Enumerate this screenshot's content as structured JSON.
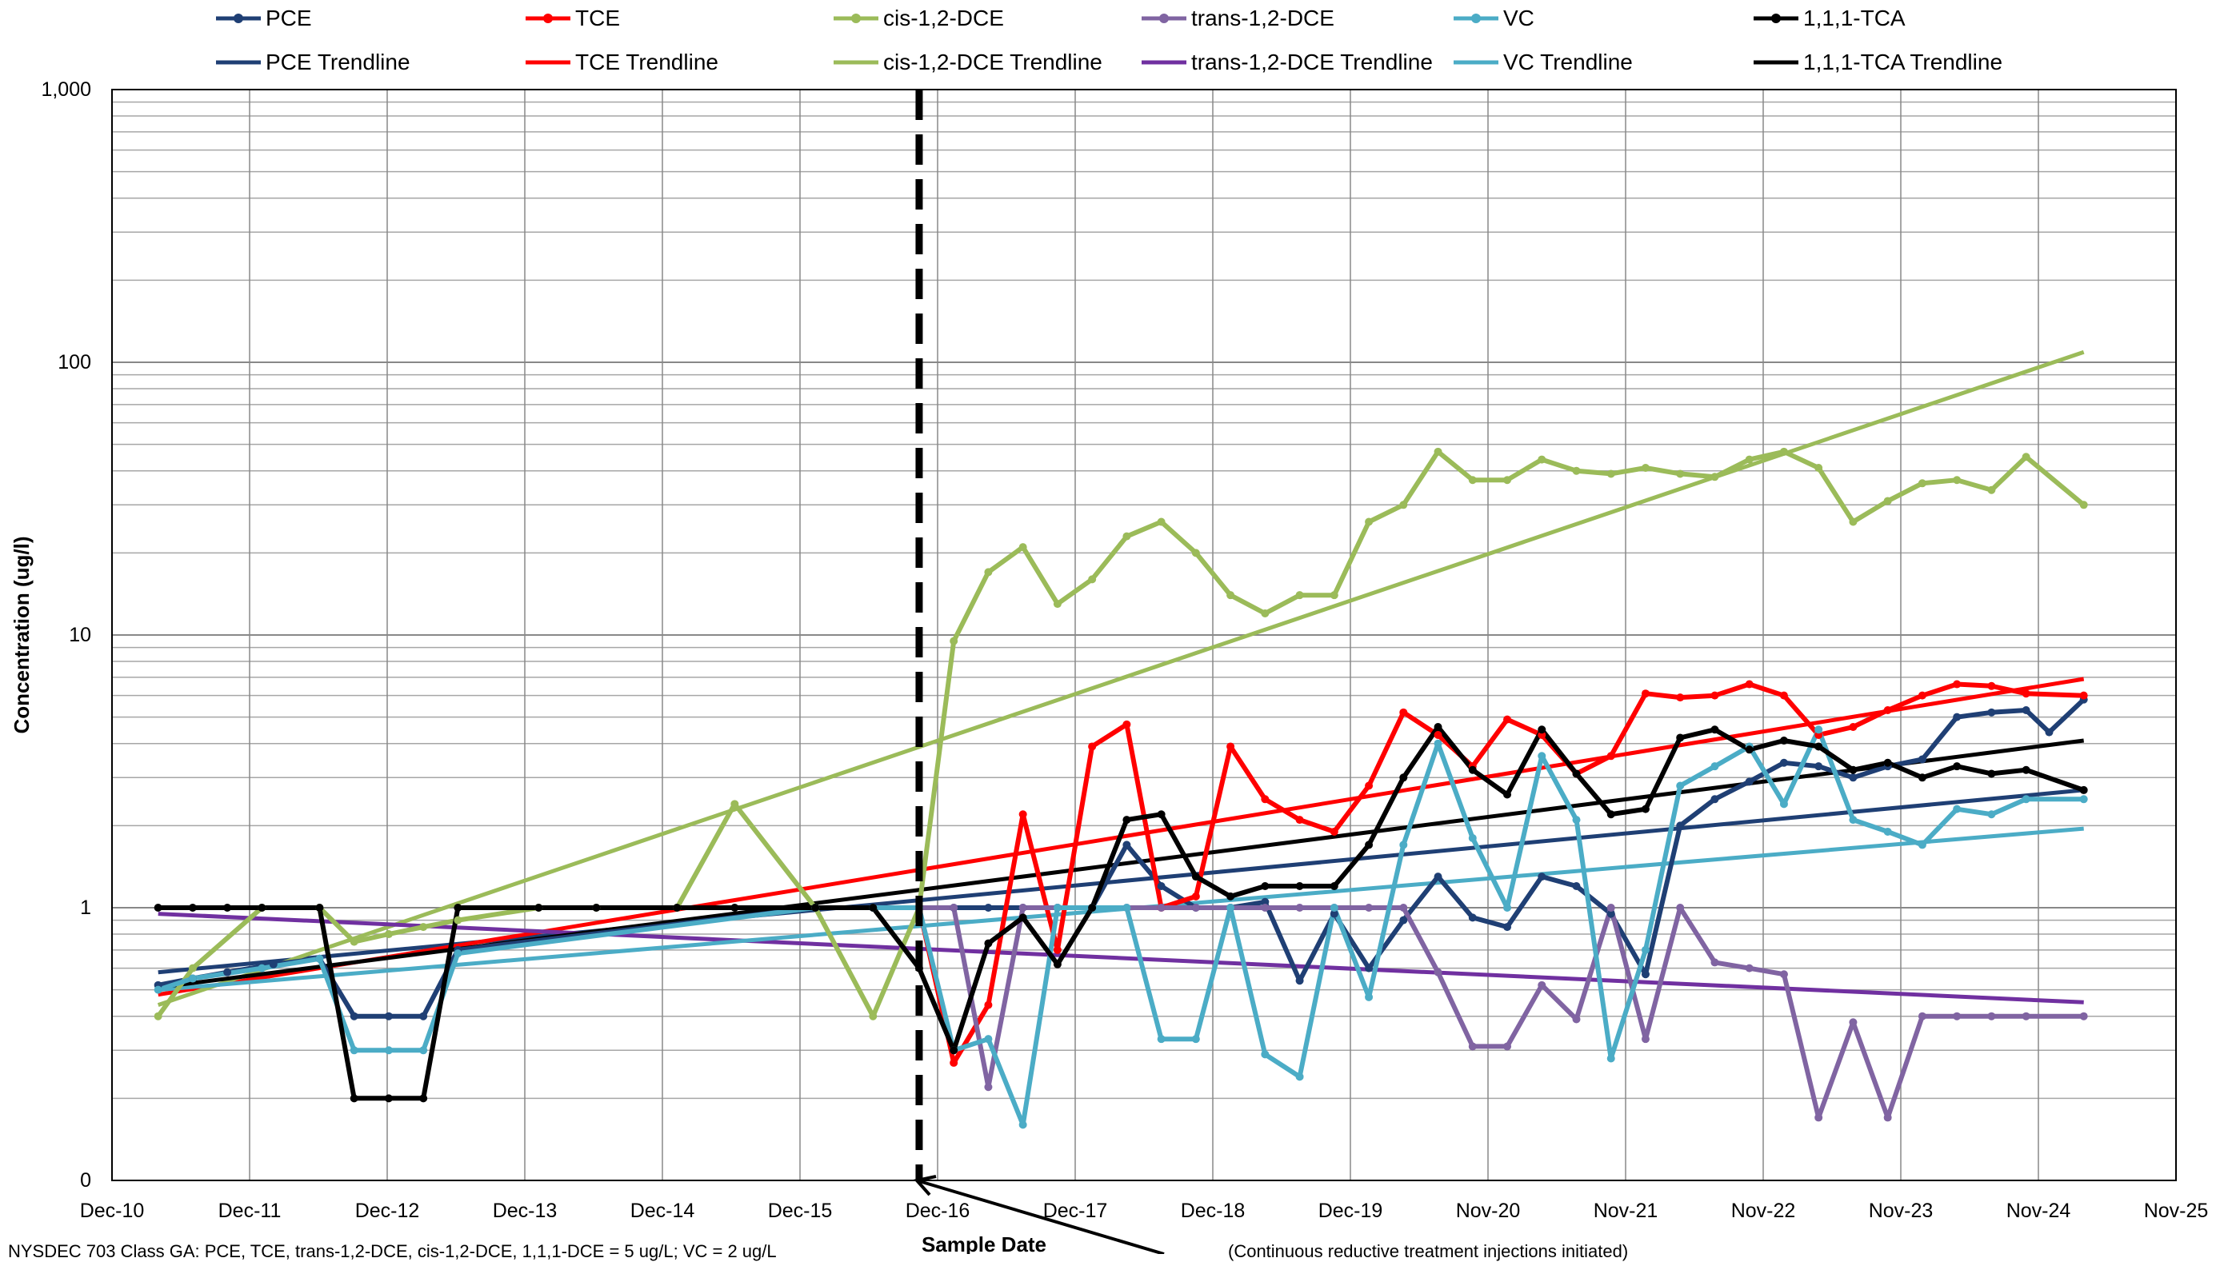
{
  "chart_data": {
    "type": "line",
    "yscale": "log",
    "ylim": [
      0.1,
      1000
    ],
    "ylabel": "Concentration (ug/l)",
    "xlabel": "Sample Date",
    "y_ticks": [
      {
        "value": 0.1,
        "label": "0"
      },
      {
        "value": 1,
        "label": "1"
      },
      {
        "value": 10,
        "label": "10"
      },
      {
        "value": 100,
        "label": "100"
      },
      {
        "value": 1000,
        "label": "1,000"
      }
    ],
    "x_ticks": [
      "Dec-10",
      "Dec-11",
      "Dec-12",
      "Dec-13",
      "Dec-14",
      "Dec-15",
      "Dec-16",
      "Dec-17",
      "Dec-18",
      "Dec-19",
      "Nov-20",
      "Nov-21",
      "Nov-22",
      "Nov-23",
      "Nov-24",
      "Nov-25"
    ],
    "x_range": [
      "2010-12",
      "2025-11"
    ],
    "grid": true,
    "legend_position": "top",
    "vertical_marker": {
      "x": "2016-10",
      "style": "dashed"
    },
    "series": [
      {
        "name": "PCE",
        "color": "#1F3F74",
        "marker": true,
        "points": [
          [
            "2011-04",
            0.52
          ],
          [
            "2011-07",
            0.55
          ],
          [
            "2011-10",
            0.58
          ],
          [
            "2012-02",
            0.62
          ],
          [
            "2012-06",
            0.65
          ],
          [
            "2012-09",
            0.4
          ],
          [
            "2012-12",
            0.4
          ],
          [
            "2013-03",
            0.4
          ],
          [
            "2013-06",
            0.7
          ],
          [
            "2016-01",
            1.0
          ],
          [
            "2016-06",
            1.0
          ],
          [
            "2016-10",
            1.0
          ],
          [
            "2017-01",
            1.0
          ],
          [
            "2017-04",
            1.0
          ],
          [
            "2017-07",
            1.0
          ],
          [
            "2017-10",
            1.0
          ],
          [
            "2018-01",
            1.0
          ],
          [
            "2018-04",
            1.7
          ],
          [
            "2018-07",
            1.2
          ],
          [
            "2018-10",
            1.0
          ],
          [
            "2019-01",
            1.0
          ],
          [
            "2019-04",
            1.05
          ],
          [
            "2019-07",
            0.54
          ],
          [
            "2019-10",
            0.95
          ],
          [
            "2020-01",
            0.6
          ],
          [
            "2020-04",
            0.9
          ],
          [
            "2020-07",
            1.3
          ],
          [
            "2020-10",
            0.92
          ],
          [
            "2021-01",
            0.85
          ],
          [
            "2021-04",
            1.3
          ],
          [
            "2021-07",
            1.2
          ],
          [
            "2021-10",
            0.95
          ],
          [
            "2022-01",
            0.57
          ],
          [
            "2022-04",
            2.0
          ],
          [
            "2022-07",
            2.5
          ],
          [
            "2022-10",
            2.9
          ],
          [
            "2023-01",
            3.4
          ],
          [
            "2023-04",
            3.3
          ],
          [
            "2023-07",
            3.0
          ],
          [
            "2023-10",
            3.3
          ],
          [
            "2024-01",
            3.5
          ],
          [
            "2024-04",
            5.0
          ],
          [
            "2024-07",
            5.2
          ],
          [
            "2024-10",
            5.3
          ],
          [
            "2024-12",
            4.4
          ],
          [
            "2025-03",
            5.8
          ]
        ]
      },
      {
        "name": "TCE",
        "color": "#FF0000",
        "marker": true,
        "points": [
          [
            "2016-10",
            1.0
          ],
          [
            "2017-01",
            0.27
          ],
          [
            "2017-04",
            0.44
          ],
          [
            "2017-07",
            2.2
          ],
          [
            "2017-10",
            0.7
          ],
          [
            "2018-01",
            3.9
          ],
          [
            "2018-04",
            4.7
          ],
          [
            "2018-07",
            1.0
          ],
          [
            "2018-10",
            1.1
          ],
          [
            "2019-01",
            3.9
          ],
          [
            "2019-04",
            2.5
          ],
          [
            "2019-07",
            2.1
          ],
          [
            "2019-10",
            1.9
          ],
          [
            "2020-01",
            2.8
          ],
          [
            "2020-04",
            5.2
          ],
          [
            "2020-07",
            4.3
          ],
          [
            "2020-10",
            3.3
          ],
          [
            "2021-01",
            4.9
          ],
          [
            "2021-04",
            4.3
          ],
          [
            "2021-07",
            3.1
          ],
          [
            "2021-10",
            3.6
          ],
          [
            "2022-01",
            6.1
          ],
          [
            "2022-04",
            5.9
          ],
          [
            "2022-07",
            6.0
          ],
          [
            "2022-10",
            6.6
          ],
          [
            "2023-01",
            6.0
          ],
          [
            "2023-04",
            4.3
          ],
          [
            "2023-07",
            4.6
          ],
          [
            "2023-10",
            5.3
          ],
          [
            "2024-01",
            6.0
          ],
          [
            "2024-04",
            6.6
          ],
          [
            "2024-07",
            6.5
          ],
          [
            "2024-10",
            6.1
          ],
          [
            "2025-03",
            6.0
          ]
        ]
      },
      {
        "name": "cis-1,2-DCE",
        "color": "#9BBB59",
        "marker": true,
        "points": [
          [
            "2011-04",
            0.4
          ],
          [
            "2011-07",
            0.6
          ],
          [
            "2012-01",
            1.0
          ],
          [
            "2012-06",
            1.0
          ],
          [
            "2012-09",
            0.75
          ],
          [
            "2012-12",
            0.8
          ],
          [
            "2013-03",
            0.85
          ],
          [
            "2013-06",
            0.9
          ],
          [
            "2014-01",
            1.0
          ],
          [
            "2014-06",
            1.0
          ],
          [
            "2015-01",
            1.0
          ],
          [
            "2015-06",
            2.4
          ],
          [
            "2016-01",
            1.0
          ],
          [
            "2016-06",
            0.4
          ],
          [
            "2016-10",
            1.0
          ],
          [
            "2017-01",
            9.5
          ],
          [
            "2017-04",
            17
          ],
          [
            "2017-07",
            21
          ],
          [
            "2017-10",
            13
          ],
          [
            "2018-01",
            16
          ],
          [
            "2018-04",
            23
          ],
          [
            "2018-07",
            26
          ],
          [
            "2018-10",
            20
          ],
          [
            "2019-01",
            14
          ],
          [
            "2019-04",
            12
          ],
          [
            "2019-07",
            14
          ],
          [
            "2019-10",
            14
          ],
          [
            "2020-01",
            26
          ],
          [
            "2020-04",
            30
          ],
          [
            "2020-07",
            47
          ],
          [
            "2020-10",
            37
          ],
          [
            "2021-01",
            37
          ],
          [
            "2021-04",
            44
          ],
          [
            "2021-07",
            40
          ],
          [
            "2021-10",
            39
          ],
          [
            "2022-01",
            41
          ],
          [
            "2022-04",
            39
          ],
          [
            "2022-07",
            38
          ],
          [
            "2022-10",
            44
          ],
          [
            "2023-01",
            47
          ],
          [
            "2023-04",
            41
          ],
          [
            "2023-07",
            26
          ],
          [
            "2023-10",
            31
          ],
          [
            "2024-01",
            36
          ],
          [
            "2024-04",
            37
          ],
          [
            "2024-07",
            34
          ],
          [
            "2024-10",
            45
          ],
          [
            "2025-03",
            30
          ]
        ]
      },
      {
        "name": "trans-1,2-DCE",
        "color": "#8064A2",
        "marker": true,
        "points": [
          [
            "2016-10",
            1.0
          ],
          [
            "2017-01",
            1.0
          ],
          [
            "2017-04",
            0.22
          ],
          [
            "2017-07",
            1.0
          ],
          [
            "2017-10",
            1.0
          ],
          [
            "2018-01",
            1.0
          ],
          [
            "2018-04",
            1.0
          ],
          [
            "2018-07",
            1.0
          ],
          [
            "2018-10",
            1.0
          ],
          [
            "2019-01",
            1.0
          ],
          [
            "2019-04",
            1.0
          ],
          [
            "2019-07",
            1.0
          ],
          [
            "2019-10",
            1.0
          ],
          [
            "2020-01",
            1.0
          ],
          [
            "2020-04",
            1.0
          ],
          [
            "2020-07",
            0.58
          ],
          [
            "2020-10",
            0.31
          ],
          [
            "2021-01",
            0.31
          ],
          [
            "2021-04",
            0.52
          ],
          [
            "2021-07",
            0.39
          ],
          [
            "2021-10",
            1.0
          ],
          [
            "2022-01",
            0.33
          ],
          [
            "2022-04",
            1.0
          ],
          [
            "2022-07",
            0.63
          ],
          [
            "2022-10",
            0.6
          ],
          [
            "2023-01",
            0.57
          ],
          [
            "2023-04",
            0.17
          ],
          [
            "2023-07",
            0.38
          ],
          [
            "2023-10",
            0.17
          ],
          [
            "2024-01",
            0.4
          ],
          [
            "2024-04",
            0.4
          ],
          [
            "2024-07",
            0.4
          ],
          [
            "2024-10",
            0.4
          ],
          [
            "2025-03",
            0.4
          ]
        ]
      },
      {
        "name": "VC",
        "color": "#4BACC6",
        "marker": true,
        "points": [
          [
            "2011-04",
            0.5
          ],
          [
            "2011-07",
            0.55
          ],
          [
            "2012-01",
            0.6
          ],
          [
            "2012-06",
            0.65
          ],
          [
            "2012-09",
            0.3
          ],
          [
            "2012-12",
            0.3
          ],
          [
            "2013-03",
            0.3
          ],
          [
            "2013-06",
            0.68
          ],
          [
            "2016-01",
            1.0
          ],
          [
            "2016-06",
            1.0
          ],
          [
            "2016-10",
            1.0
          ],
          [
            "2017-01",
            0.3
          ],
          [
            "2017-04",
            0.33
          ],
          [
            "2017-07",
            0.16
          ],
          [
            "2017-10",
            1.0
          ],
          [
            "2018-01",
            1.0
          ],
          [
            "2018-04",
            1.0
          ],
          [
            "2018-07",
            0.33
          ],
          [
            "2018-10",
            0.33
          ],
          [
            "2019-01",
            1.0
          ],
          [
            "2019-04",
            0.29
          ],
          [
            "2019-07",
            0.24
          ],
          [
            "2019-10",
            1.0
          ],
          [
            "2020-01",
            0.47
          ],
          [
            "2020-04",
            1.7
          ],
          [
            "2020-07",
            4.0
          ],
          [
            "2020-10",
            1.8
          ],
          [
            "2021-01",
            1.0
          ],
          [
            "2021-04",
            3.6
          ],
          [
            "2021-07",
            2.1
          ],
          [
            "2021-10",
            0.28
          ],
          [
            "2022-01",
            0.7
          ],
          [
            "2022-04",
            2.8
          ],
          [
            "2022-07",
            3.3
          ],
          [
            "2022-10",
            3.9
          ],
          [
            "2023-01",
            2.4
          ],
          [
            "2023-04",
            4.5
          ],
          [
            "2023-07",
            2.1
          ],
          [
            "2023-10",
            1.9
          ],
          [
            "2024-01",
            1.7
          ],
          [
            "2024-04",
            2.3
          ],
          [
            "2024-07",
            2.2
          ],
          [
            "2024-10",
            2.5
          ],
          [
            "2025-03",
            2.5
          ]
        ]
      },
      {
        "name": "1,1,1-TCA",
        "color": "#000000",
        "marker": true,
        "points": [
          [
            "2011-04",
            1.0
          ],
          [
            "2011-07",
            1.0
          ],
          [
            "2011-10",
            1.0
          ],
          [
            "2012-01",
            1.0
          ],
          [
            "2012-06",
            1.0
          ],
          [
            "2012-09",
            0.2
          ],
          [
            "2012-12",
            0.2
          ],
          [
            "2013-03",
            0.2
          ],
          [
            "2013-06",
            1.0
          ],
          [
            "2014-01",
            1.0
          ],
          [
            "2014-06",
            1.0
          ],
          [
            "2015-01",
            1.0
          ],
          [
            "2015-06",
            1.0
          ],
          [
            "2016-01",
            1.0
          ],
          [
            "2016-06",
            1.0
          ],
          [
            "2016-10",
            0.6
          ],
          [
            "2017-01",
            0.3
          ],
          [
            "2017-04",
            0.74
          ],
          [
            "2017-07",
            0.92
          ],
          [
            "2017-10",
            0.62
          ],
          [
            "2018-01",
            1.0
          ],
          [
            "2018-04",
            2.1
          ],
          [
            "2018-07",
            2.2
          ],
          [
            "2018-10",
            1.3
          ],
          [
            "2019-01",
            1.1
          ],
          [
            "2019-04",
            1.2
          ],
          [
            "2019-07",
            1.2
          ],
          [
            "2019-10",
            1.2
          ],
          [
            "2020-01",
            1.7
          ],
          [
            "2020-04",
            3.0
          ],
          [
            "2020-07",
            4.6
          ],
          [
            "2020-10",
            3.2
          ],
          [
            "2021-01",
            2.6
          ],
          [
            "2021-04",
            4.5
          ],
          [
            "2021-07",
            3.1
          ],
          [
            "2021-10",
            2.2
          ],
          [
            "2022-01",
            2.3
          ],
          [
            "2022-04",
            4.2
          ],
          [
            "2022-07",
            4.5
          ],
          [
            "2022-10",
            3.8
          ],
          [
            "2023-01",
            4.1
          ],
          [
            "2023-04",
            3.9
          ],
          [
            "2023-07",
            3.2
          ],
          [
            "2023-10",
            3.4
          ],
          [
            "2024-01",
            3.0
          ],
          [
            "2024-04",
            3.3
          ],
          [
            "2024-07",
            3.1
          ],
          [
            "2024-10",
            3.2
          ],
          [
            "2025-03",
            2.7
          ]
        ]
      },
      {
        "name": "PCE Trendline",
        "color": "#1F3F74",
        "marker": false,
        "points": [
          [
            "2011-04",
            0.58
          ],
          [
            "2025-03",
            2.7
          ]
        ]
      },
      {
        "name": "TCE Trendline",
        "color": "#FF0000",
        "marker": false,
        "points": [
          [
            "2011-04",
            0.48
          ],
          [
            "2025-03",
            6.9
          ]
        ]
      },
      {
        "name": "cis-1,2-DCE Trendline",
        "color": "#9BBB59",
        "marker": false,
        "points": [
          [
            "2011-04",
            0.44
          ],
          [
            "2025-03",
            109
          ]
        ]
      },
      {
        "name": "trans-1,2-DCE Trendline",
        "color": "#7030A0",
        "marker": false,
        "points": [
          [
            "2011-04",
            0.95
          ],
          [
            "2025-03",
            0.45
          ]
        ]
      },
      {
        "name": "VC Trendline",
        "color": "#4BACC6",
        "marker": false,
        "points": [
          [
            "2011-04",
            0.5
          ],
          [
            "2025-03",
            1.95
          ]
        ]
      },
      {
        "name": "1,1,1-TCA Trendline",
        "color": "#000000",
        "marker": false,
        "points": [
          [
            "2011-04",
            0.51
          ],
          [
            "2025-03",
            4.1
          ]
        ]
      }
    ]
  },
  "notes": {
    "footer_left": "NYSDEC 703 Class GA: PCE, TCE, trans-1,2-DCE, cis-1,2-DCE, 1,1,1-DCE = 5 ug/L; VC = 2 ug/L",
    "footer_right": "(Continuous reductive treatment injections initiated)"
  }
}
